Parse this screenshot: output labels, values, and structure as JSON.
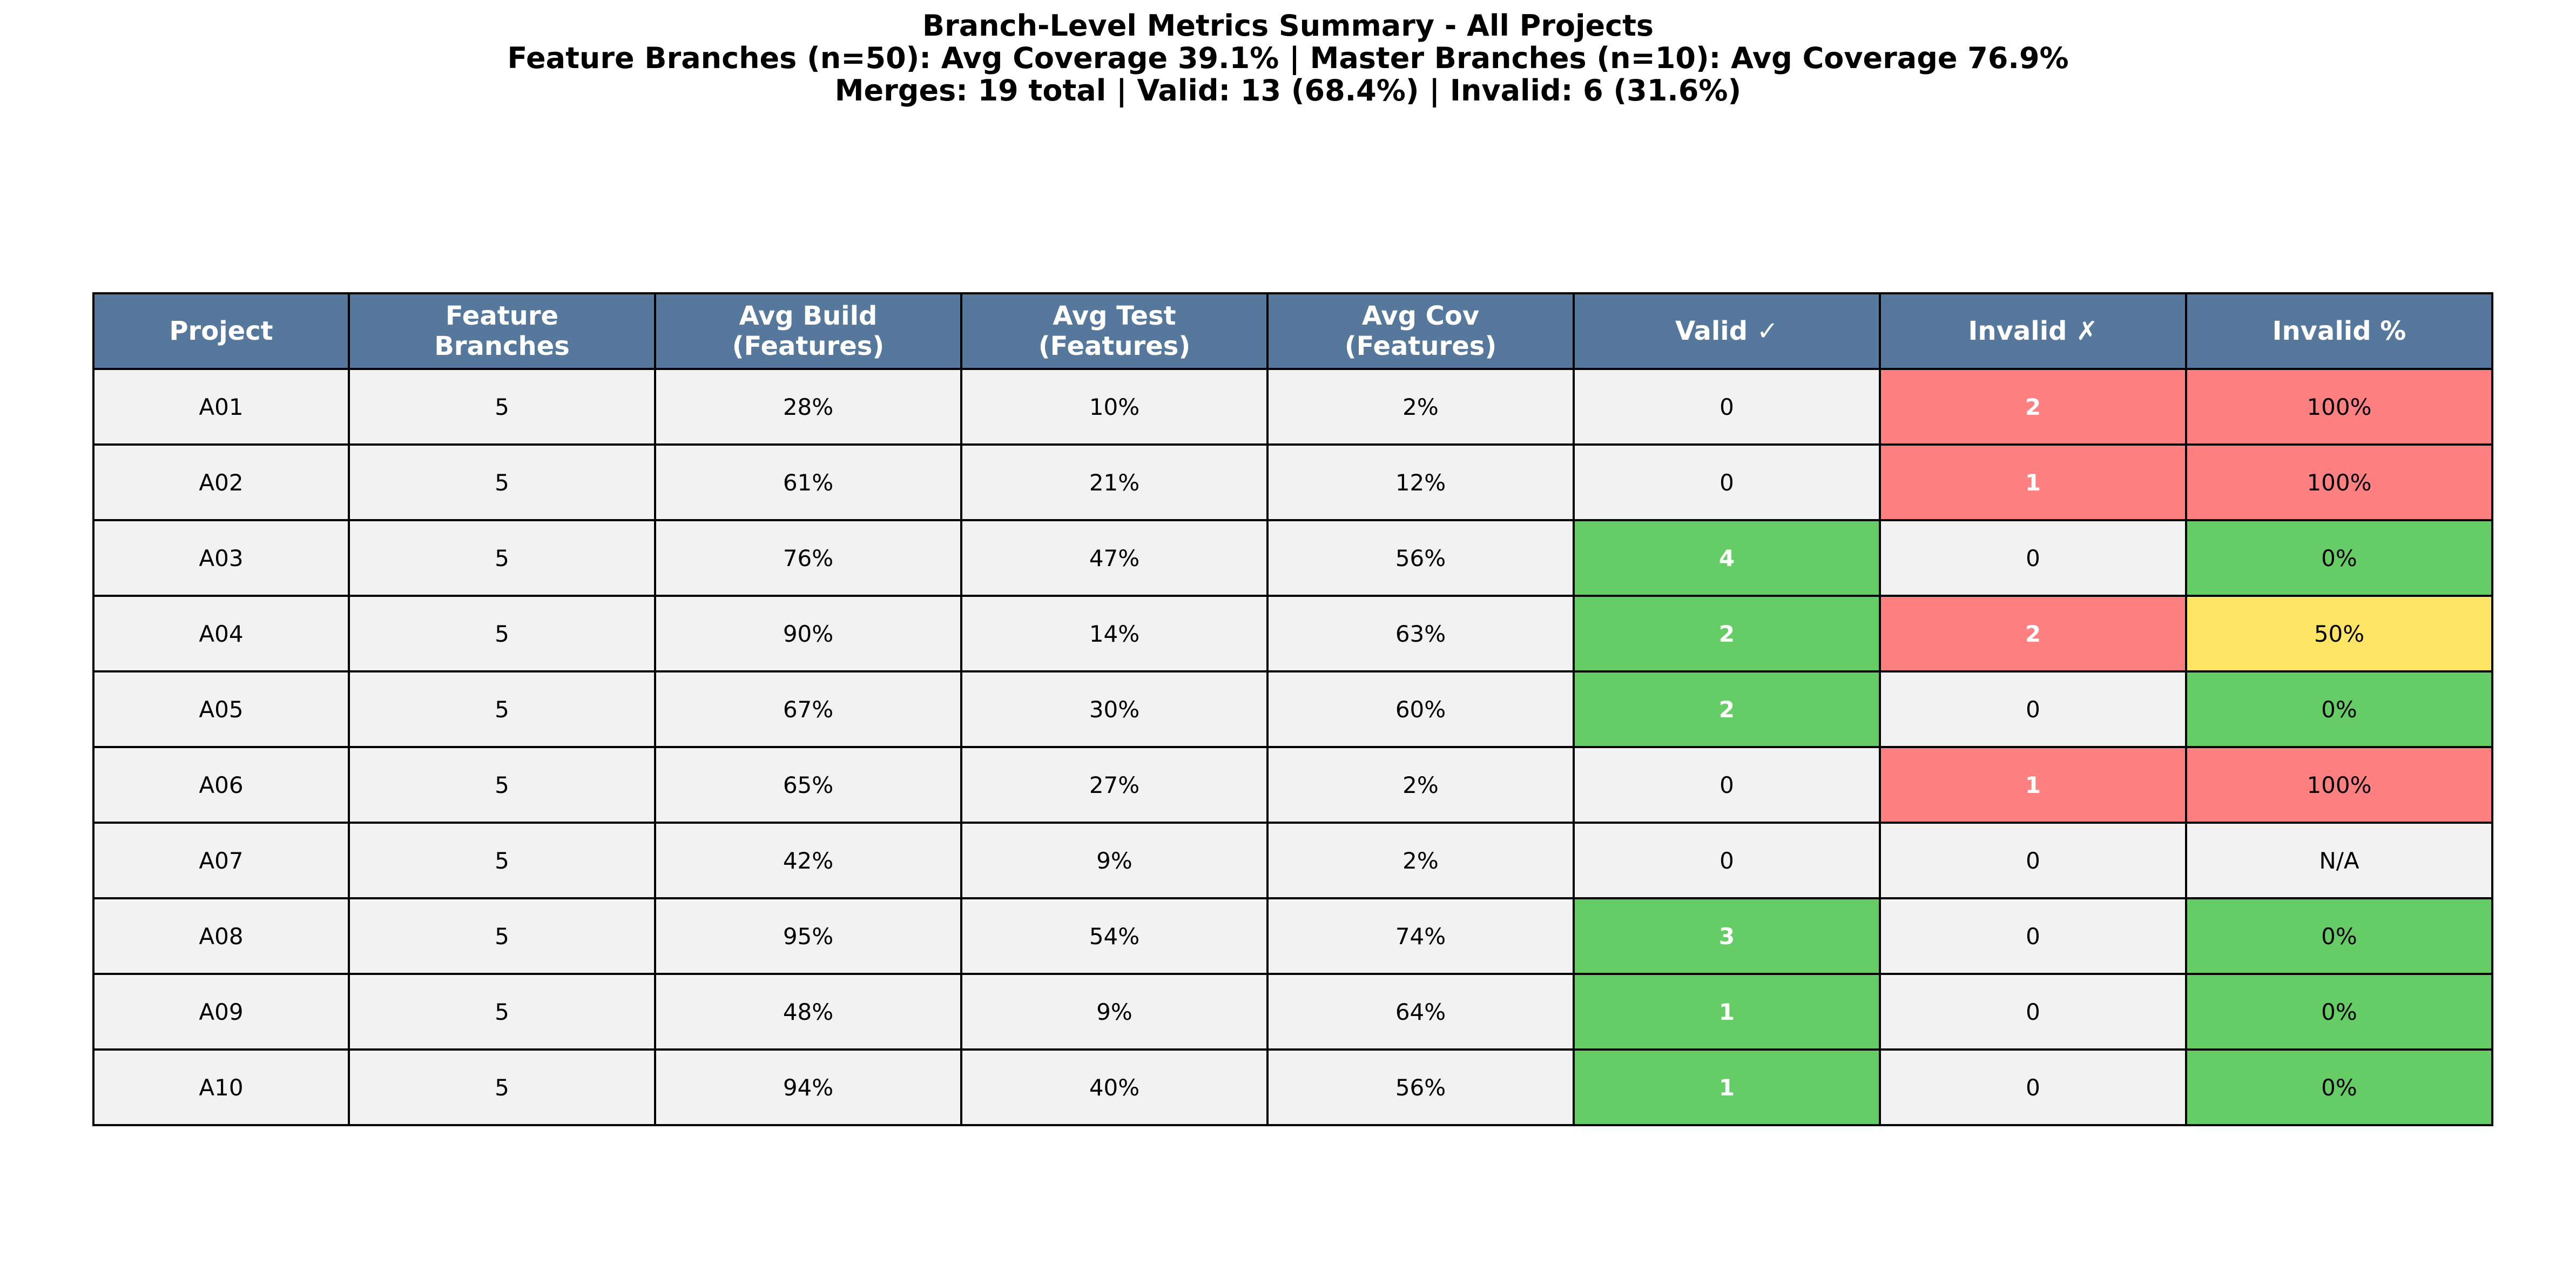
{
  "chart_data": {
    "type": "table",
    "title_lines": [
      "Branch-Level Metrics Summary - All Projects",
      "Feature Branches (n=50): Avg Coverage 39.1% | Master Branches (n=10): Avg Coverage 76.9%",
      "Merges: 19 total | Valid: 13 (68.4%) | Invalid: 6 (31.6%)"
    ],
    "columns": [
      "Project",
      "Feature\nBranches",
      "Avg Build\n(Features)",
      "Avg Test\n(Features)",
      "Avg Cov\n(Features)",
      "Valid ✓",
      "Invalid ✗",
      "Invalid %"
    ],
    "rows": [
      {
        "project": "A01",
        "feature_branches": "5",
        "avg_build": "28%",
        "avg_test": "10%",
        "avg_cov": "2%",
        "valid": "0",
        "invalid": "2",
        "invalid_pct": "100%"
      },
      {
        "project": "A02",
        "feature_branches": "5",
        "avg_build": "61%",
        "avg_test": "21%",
        "avg_cov": "12%",
        "valid": "0",
        "invalid": "1",
        "invalid_pct": "100%"
      },
      {
        "project": "A03",
        "feature_branches": "5",
        "avg_build": "76%",
        "avg_test": "47%",
        "avg_cov": "56%",
        "valid": "4",
        "invalid": "0",
        "invalid_pct": "0%"
      },
      {
        "project": "A04",
        "feature_branches": "5",
        "avg_build": "90%",
        "avg_test": "14%",
        "avg_cov": "63%",
        "valid": "2",
        "invalid": "2",
        "invalid_pct": "50%"
      },
      {
        "project": "A05",
        "feature_branches": "5",
        "avg_build": "67%",
        "avg_test": "30%",
        "avg_cov": "60%",
        "valid": "2",
        "invalid": "0",
        "invalid_pct": "0%"
      },
      {
        "project": "A06",
        "feature_branches": "5",
        "avg_build": "65%",
        "avg_test": "27%",
        "avg_cov": "2%",
        "valid": "0",
        "invalid": "1",
        "invalid_pct": "100%"
      },
      {
        "project": "A07",
        "feature_branches": "5",
        "avg_build": "42%",
        "avg_test": "9%",
        "avg_cov": "2%",
        "valid": "0",
        "invalid": "0",
        "invalid_pct": "N/A"
      },
      {
        "project": "A08",
        "feature_branches": "5",
        "avg_build": "95%",
        "avg_test": "54%",
        "avg_cov": "74%",
        "valid": "3",
        "invalid": "0",
        "invalid_pct": "0%"
      },
      {
        "project": "A09",
        "feature_branches": "5",
        "avg_build": "48%",
        "avg_test": "9%",
        "avg_cov": "64%",
        "valid": "1",
        "invalid": "0",
        "invalid_pct": "0%"
      },
      {
        "project": "A10",
        "feature_branches": "5",
        "avg_build": "94%",
        "avg_test": "40%",
        "avg_cov": "56%",
        "valid": "1",
        "invalid": "0",
        "invalid_pct": "0%"
      }
    ],
    "colors": {
      "header_bg": "#56789c",
      "cell_bg": "#f2f2f2",
      "valid_positive": "#66cc66",
      "invalid_positive": "#ff8080",
      "invalid_pct_0": "#66cc66",
      "invalid_pct_50": "#ffe566",
      "invalid_pct_100": "#ff8080"
    }
  }
}
